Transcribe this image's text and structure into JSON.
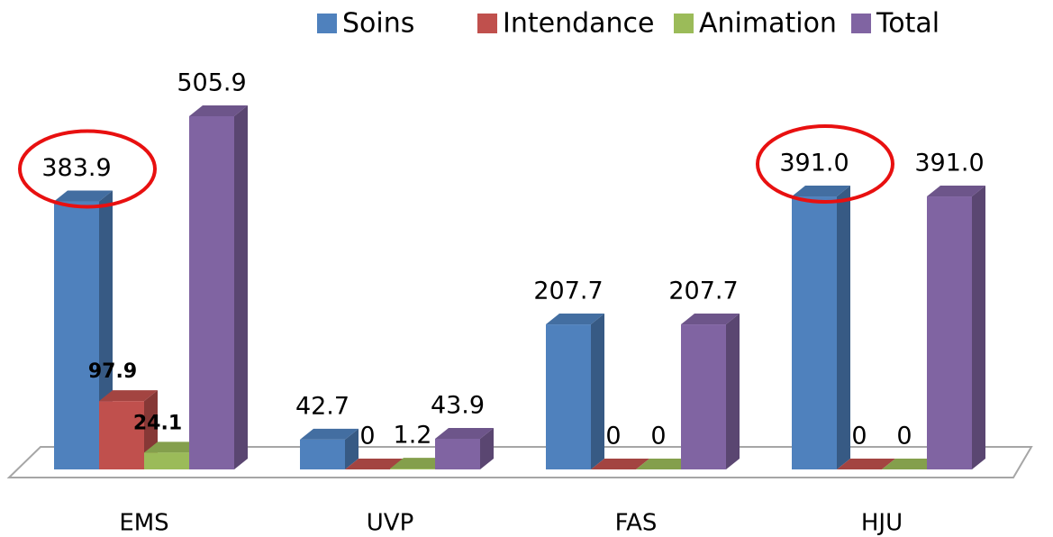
{
  "chart_data": {
    "type": "bar3d",
    "categories": [
      "EMS",
      "UVP",
      "FAS",
      "HJU"
    ],
    "series": [
      {
        "name": "Soins",
        "color": "#4f81bd",
        "values": [
          383.9,
          42.7,
          207.7,
          391.0
        ],
        "value_labels": [
          "383.9",
          "42.7",
          "207.7",
          "391.0"
        ]
      },
      {
        "name": "Intendance",
        "color": "#c0504d",
        "values": [
          97.9,
          0,
          0,
          0
        ],
        "value_labels": [
          "97.9",
          "0",
          "0",
          "0"
        ]
      },
      {
        "name": "Animation",
        "color": "#9bbb59",
        "values": [
          24.1,
          1.2,
          0,
          0
        ],
        "value_labels": [
          "24.1",
          "1.2",
          "0",
          "0"
        ]
      },
      {
        "name": "Total",
        "color": "#8064a2",
        "values": [
          505.9,
          43.9,
          207.7,
          391.0
        ],
        "value_labels": [
          "505.9",
          "43.9",
          "207.7",
          "391.0"
        ]
      }
    ],
    "legend": "top-right"
  }
}
